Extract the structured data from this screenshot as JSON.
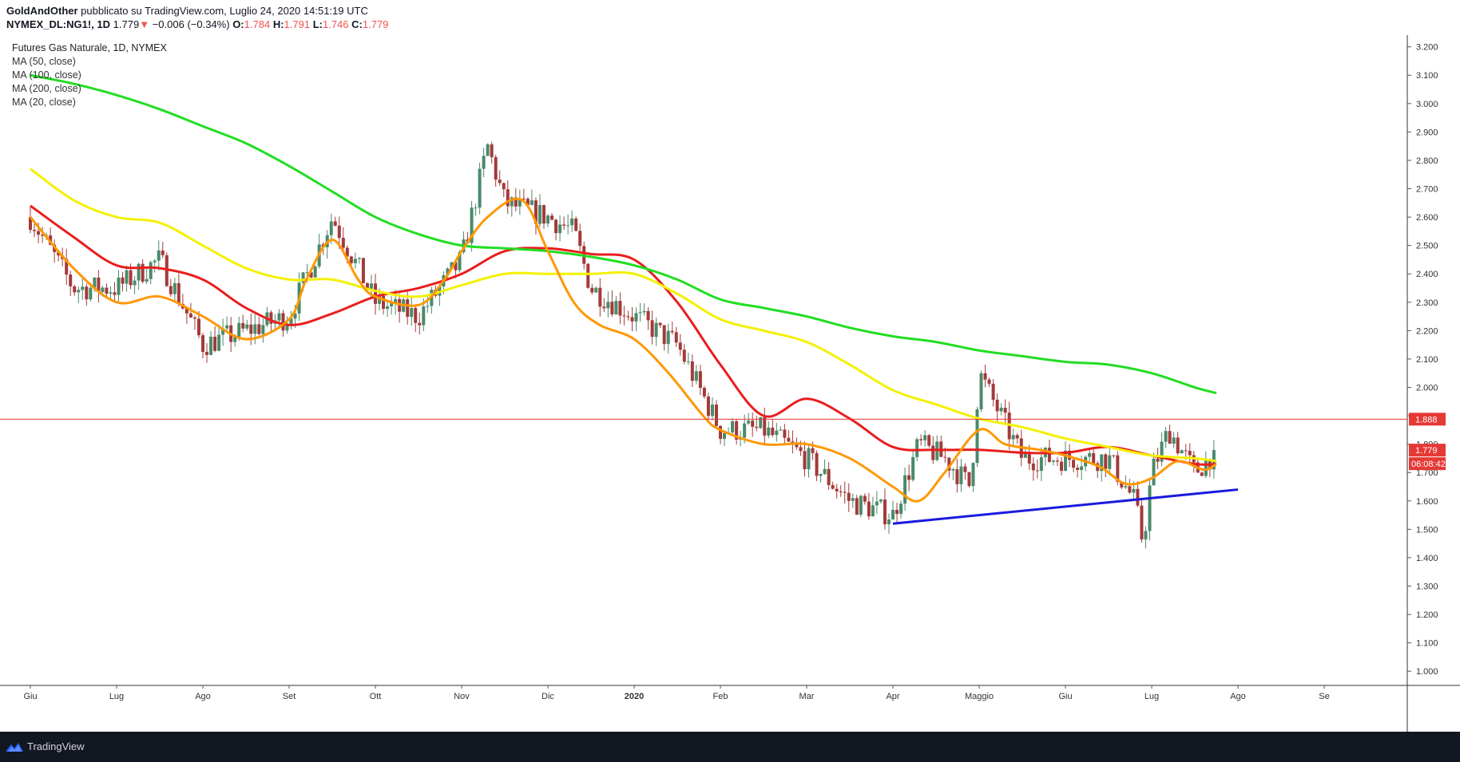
{
  "header": {
    "author": "GoldAndOther",
    "published": "pubblicato su TradingView.com, Luglio 24, 2020 14:51:19 UTC",
    "symbol": "NYMEX_DL:NG1!, 1D",
    "last": "1.779",
    "change": "−0.006 (−0.34%)",
    "o_label": "O:",
    "o_value": "1.784",
    "h_label": "H:",
    "h_value": "1.791",
    "l_label": "L:",
    "l_value": "1.746",
    "c_label": "C:",
    "c_value": "1.779"
  },
  "legend": {
    "title": "Futures Gas Naturale, 1D, NYMEX",
    "ma50": "MA (50, close)",
    "ma100": "MA (100, close)",
    "ma200": "MA (200, close)",
    "ma20": "MA (20, close)"
  },
  "footer": {
    "brand": "TradingView"
  },
  "colors": {
    "ma20": "#ff9800",
    "ma50": "#e91e1e",
    "ma100": "#f5f000",
    "ma200": "#22dd22",
    "trendline": "#1a1adf",
    "hline": "#e53935",
    "up": "#4a8a6b",
    "down": "#a33a3a"
  },
  "chart_data": {
    "type": "line",
    "x_axis_labels": [
      "Giu",
      "Lug",
      "Ago",
      "Set",
      "Ott",
      "Nov",
      "Dic",
      "2020",
      "Feb",
      "Mar",
      "Apr",
      "Maggio",
      "Giu",
      "Lug",
      "Ago",
      "Se"
    ],
    "y_tick_labels": [
      "1.000",
      "1.100",
      "1.200",
      "1.300",
      "1.400",
      "1.500",
      "1.600",
      "1.700",
      "1.800",
      "1.900",
      "2.000",
      "2.100",
      "2.200",
      "2.300",
      "2.400",
      "2.500",
      "2.600",
      "2.700",
      "2.800",
      "2.900",
      "3.000",
      "3.100",
      "3.200"
    ],
    "ylim": [
      0.95,
      3.23
    ],
    "horizontal_line": {
      "value": 1.888,
      "label": "1.888"
    },
    "price_label": {
      "value": 1.779,
      "label": "1.779"
    },
    "countdown_label": "06:08:42",
    "trendline": [
      {
        "month": 10.0,
        "price": 1.52
      },
      {
        "month": 14.0,
        "price": 1.64
      }
    ],
    "anchors_month": [
      0.0,
      0.5,
      1.0,
      1.5,
      2.0,
      2.5,
      3.0,
      3.5,
      4.0,
      4.5,
      5.0,
      5.3,
      5.5,
      6.0,
      6.3,
      6.5,
      7.0,
      7.5,
      8.0,
      8.5,
      9.0,
      9.5,
      10.0,
      10.3,
      10.6,
      10.9,
      11.0,
      11.5,
      12.0,
      12.5,
      12.8,
      12.9,
      13.0,
      13.2,
      13.5,
      13.75
    ],
    "anchors_price": [
      2.6,
      2.35,
      2.35,
      2.45,
      2.15,
      2.2,
      2.25,
      2.6,
      2.3,
      2.25,
      2.45,
      2.85,
      2.65,
      2.6,
      2.55,
      2.35,
      2.25,
      2.15,
      1.85,
      1.85,
      1.75,
      1.6,
      1.55,
      1.8,
      1.75,
      1.65,
      2.05,
      1.75,
      1.75,
      1.75,
      1.6,
      1.45,
      1.7,
      1.85,
      1.7,
      1.779
    ],
    "series": [
      {
        "name": "MA (50, close)",
        "month": [
          0.0,
          0.5,
          1.0,
          1.5,
          2.0,
          2.5,
          3.0,
          3.5,
          4.0,
          4.5,
          5.0,
          5.5,
          6.0,
          6.5,
          7.0,
          7.5,
          8.0,
          8.5,
          9.0,
          9.5,
          10.0,
          10.5,
          11.0,
          11.5,
          12.0,
          12.5,
          13.0,
          13.5,
          13.75
        ],
        "values": [
          2.64,
          2.53,
          2.43,
          2.42,
          2.38,
          2.28,
          2.22,
          2.26,
          2.32,
          2.35,
          2.4,
          2.48,
          2.49,
          2.47,
          2.45,
          2.3,
          2.08,
          1.9,
          1.96,
          1.89,
          1.79,
          1.78,
          1.78,
          1.77,
          1.77,
          1.79,
          1.76,
          1.73,
          1.73
        ]
      },
      {
        "name": "MA (100, close)",
        "month": [
          0.0,
          0.5,
          1.0,
          1.5,
          2.0,
          2.5,
          3.0,
          3.5,
          4.0,
          4.5,
          5.0,
          5.5,
          6.0,
          6.5,
          7.0,
          7.5,
          8.0,
          8.5,
          9.0,
          9.5,
          10.0,
          10.5,
          11.0,
          11.5,
          12.0,
          12.5,
          13.0,
          13.5,
          13.75
        ],
        "values": [
          2.77,
          2.66,
          2.6,
          2.58,
          2.5,
          2.42,
          2.38,
          2.38,
          2.34,
          2.32,
          2.36,
          2.4,
          2.4,
          2.4,
          2.4,
          2.33,
          2.24,
          2.2,
          2.16,
          2.08,
          1.99,
          1.94,
          1.89,
          1.86,
          1.82,
          1.79,
          1.76,
          1.75,
          1.74
        ]
      },
      {
        "name": "MA (200, close)",
        "month": [
          0.0,
          0.5,
          1.0,
          1.5,
          2.0,
          2.5,
          3.0,
          3.5,
          4.0,
          4.5,
          5.0,
          5.5,
          6.0,
          6.5,
          7.0,
          7.5,
          8.0,
          8.5,
          9.0,
          9.5,
          10.0,
          10.5,
          11.0,
          11.5,
          12.0,
          12.5,
          13.0,
          13.5,
          13.75
        ],
        "values": [
          3.1,
          3.07,
          3.03,
          2.98,
          2.92,
          2.86,
          2.78,
          2.69,
          2.6,
          2.54,
          2.5,
          2.49,
          2.48,
          2.46,
          2.43,
          2.38,
          2.31,
          2.28,
          2.25,
          2.21,
          2.18,
          2.16,
          2.13,
          2.11,
          2.09,
          2.08,
          2.05,
          2.0,
          1.98
        ]
      },
      {
        "name": "MA (20, close)",
        "month": [
          0.0,
          0.5,
          1.0,
          1.5,
          2.0,
          2.5,
          3.0,
          3.2,
          3.5,
          3.8,
          4.0,
          4.5,
          4.8,
          5.0,
          5.3,
          5.7,
          6.0,
          6.3,
          6.6,
          7.0,
          7.4,
          7.8,
          8.0,
          8.5,
          9.0,
          9.5,
          10.0,
          10.3,
          10.6,
          11.0,
          11.3,
          11.7,
          12.0,
          12.4,
          12.7,
          13.0,
          13.3,
          13.6,
          13.75
        ],
        "values": [
          2.6,
          2.42,
          2.3,
          2.32,
          2.25,
          2.17,
          2.24,
          2.38,
          2.52,
          2.38,
          2.32,
          2.29,
          2.38,
          2.48,
          2.6,
          2.66,
          2.48,
          2.3,
          2.22,
          2.17,
          2.05,
          1.9,
          1.85,
          1.8,
          1.8,
          1.75,
          1.65,
          1.6,
          1.7,
          1.85,
          1.8,
          1.78,
          1.76,
          1.72,
          1.66,
          1.68,
          1.74,
          1.71,
          1.73
        ]
      }
    ]
  }
}
